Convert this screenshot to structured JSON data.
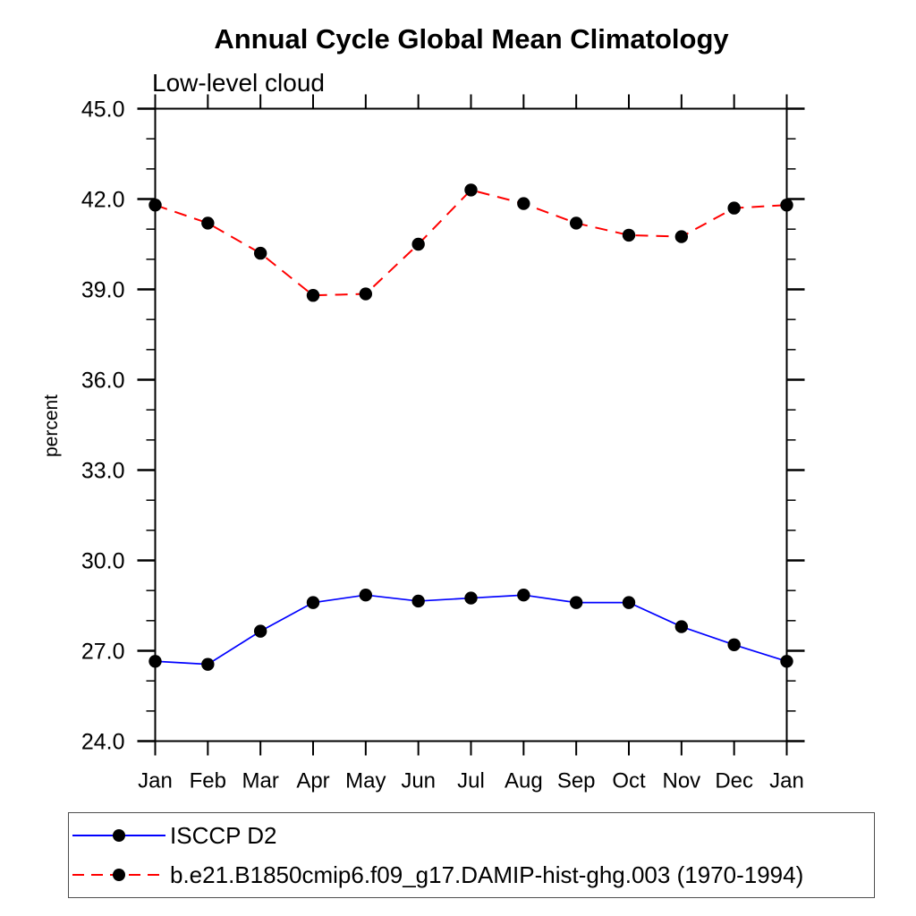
{
  "chart_data": {
    "type": "line",
    "title": "Annual Cycle Global Mean Climatology",
    "subtitle": "Low-level cloud",
    "ylabel": "percent",
    "xlabel": "",
    "categories": [
      "Jan",
      "Feb",
      "Mar",
      "Apr",
      "May",
      "Jun",
      "Jul",
      "Aug",
      "Sep",
      "Oct",
      "Nov",
      "Dec",
      "Jan"
    ],
    "ylim": [
      24.0,
      45.0
    ],
    "ytick_major_interval": 3.0,
    "ytick_minor_interval": 1.0,
    "ytick_labels": [
      "24.0",
      "27.0",
      "30.0",
      "33.0",
      "36.0",
      "39.0",
      "42.0",
      "45.0"
    ],
    "grid": false,
    "legend_position": "bottom-left-box",
    "series": [
      {
        "name": "ISCCP D2",
        "color": "#0000ff",
        "line_style": "solid",
        "marker": "filled-circle",
        "marker_color": "#000000",
        "values": [
          26.65,
          26.55,
          27.65,
          28.6,
          28.85,
          28.65,
          28.75,
          28.85,
          28.6,
          28.6,
          27.8,
          27.2,
          26.65
        ]
      },
      {
        "name": "b.e21.B1850cmip6.f09_g17.DAMIP-hist-ghg.003 (1970-1994)",
        "color": "#ff0000",
        "line_style": "dashed",
        "marker": "filled-circle",
        "marker_color": "#000000",
        "values": [
          41.8,
          41.2,
          40.2,
          38.8,
          38.85,
          40.5,
          42.3,
          41.85,
          41.2,
          40.8,
          40.75,
          41.7,
          41.8
        ]
      }
    ]
  }
}
